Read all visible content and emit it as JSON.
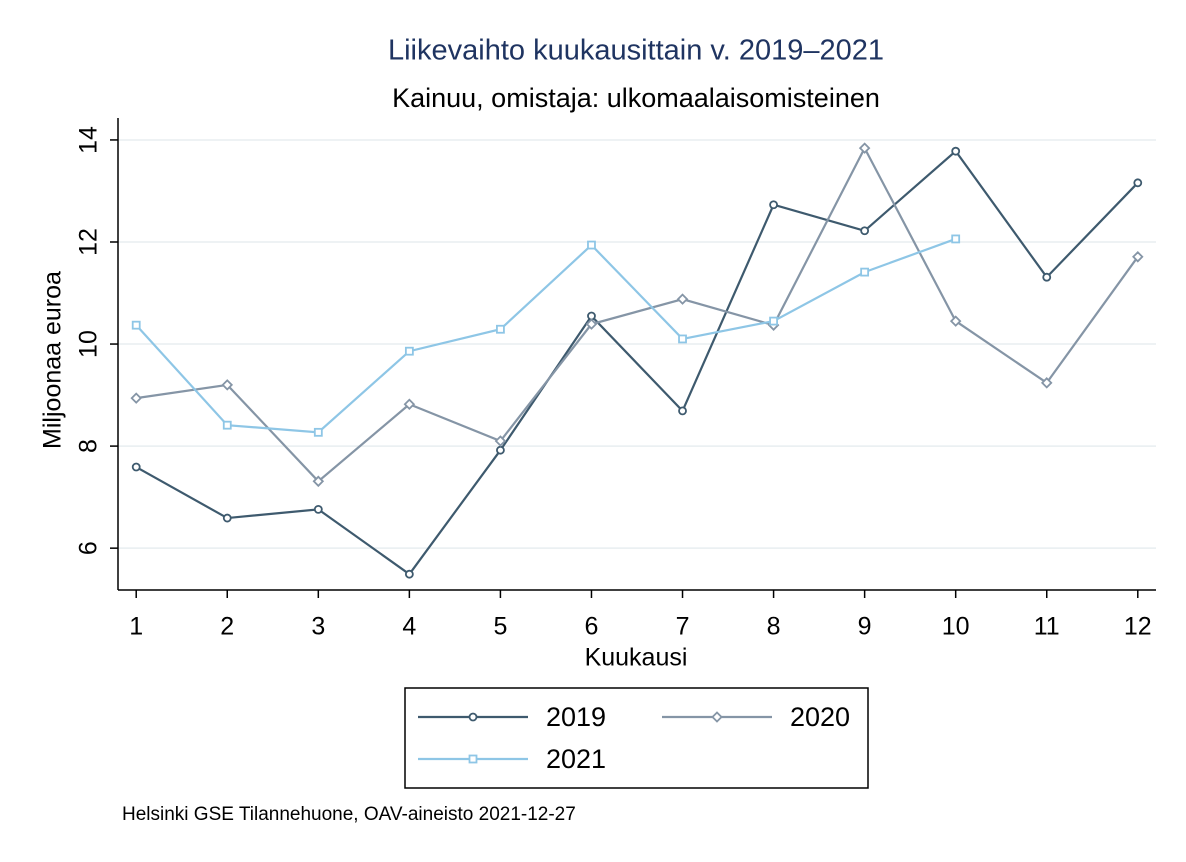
{
  "chart_data": {
    "type": "line",
    "title": "Liikevaihto kuukausittain v. 2019–2021",
    "subtitle": "Kainuu, omistaja: ulkomaalaisomisteinen",
    "x_label": "Kuukausi",
    "y_label": "Miljoonaa euroa",
    "note": "Helsinki GSE Tilannehuone, OAV-aineisto 2021-12-27",
    "x": [
      1,
      2,
      3,
      4,
      5,
      6,
      7,
      8,
      9,
      10,
      11,
      12
    ],
    "series": [
      {
        "name": "2019",
        "color": "#3e5a6e",
        "marker": "circle",
        "values": [
          7.59,
          6.59,
          6.76,
          5.49,
          7.92,
          10.55,
          8.69,
          12.73,
          12.22,
          13.78,
          11.31,
          13.16
        ]
      },
      {
        "name": "2020",
        "color": "#8595a6",
        "marker": "diamond",
        "values": [
          8.94,
          9.2,
          7.31,
          8.82,
          8.1,
          10.39,
          10.88,
          10.37,
          13.84,
          10.45,
          9.24,
          11.71
        ]
      },
      {
        "name": "2021",
        "color": "#8ec6e6",
        "marker": "square",
        "values": [
          10.37,
          8.41,
          8.27,
          9.86,
          10.29,
          11.94,
          10.1,
          10.45,
          11.41,
          12.06,
          null,
          null
        ]
      }
    ],
    "xlim": [
      0.8,
      12.2
    ],
    "xticks": [
      1,
      2,
      3,
      4,
      5,
      6,
      7,
      8,
      9,
      10,
      11,
      12
    ],
    "ylim": [
      5.18,
      14.43
    ],
    "yticks": [
      6,
      8,
      10,
      12,
      14
    ],
    "grid": true,
    "legend_position": "bottom"
  }
}
